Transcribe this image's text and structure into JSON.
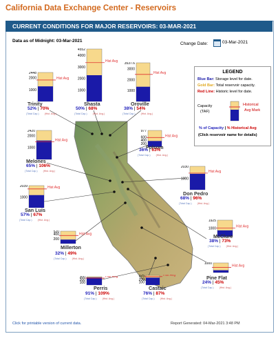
{
  "page_title": "California Data Exchange Center - Reservoirs",
  "header": "CURRENT CONDITIONS FOR MAJOR RESERVOIRS: 03-MAR-2021",
  "as_of": "Data as of Midnight: 03-Mar-2021",
  "change_date_label": "Change Date:",
  "change_date_value": "03-Mar-2021",
  "hist_label": "Hist Avg",
  "sub_cap": "(Total Cap.)",
  "sub_hist": "(Hist. Avg.)",
  "legend": {
    "title": "LEGEND",
    "blue_key": "Blue Bar:",
    "blue_text": "Storage level for date.",
    "gold_key": "Gold Bar:",
    "gold_text": "Total reservoir capacity.",
    "red_key": "Red Line:",
    "red_text": "Historic level for date.",
    "capacity": "Capacity",
    "taf": "(TAF)",
    "hist_avg": "Historical",
    "hist_mark": "Avg Mark",
    "pct_cap": "% of Capacity",
    "sep": "|",
    "pct_hist": "% Historical Avg",
    "click": "(Click reservoir name for details)"
  },
  "reservoirs": [
    {
      "name": "Trinity",
      "capacity": 2448,
      "ticks": [
        "2448",
        "2000",
        "1000"
      ],
      "pct_capacity": "52%",
      "pct_hist": "70%",
      "storage_fraction": 0.52,
      "hist_fraction": 0.74
    },
    {
      "name": "Shasta",
      "capacity": 4552,
      "ticks": [
        "4552",
        "4000",
        "3000",
        "2000",
        "1000"
      ],
      "pct_capacity": "50%",
      "pct_hist": "68%",
      "storage_fraction": 0.5,
      "hist_fraction": 0.74
    },
    {
      "name": "Oroville",
      "capacity": 3537.6,
      "ticks": [
        "3537.6",
        "3000",
        "2000",
        "1000"
      ],
      "pct_capacity": "38%",
      "pct_hist": "54%",
      "storage_fraction": 0.38,
      "hist_fraction": 0.7
    },
    {
      "name": "Folsom",
      "capacity": 977,
      "ticks": [
        "977",
        "600",
        "400",
        "200"
      ],
      "pct_capacity": "36%",
      "pct_hist": "63%",
      "storage_fraction": 0.36,
      "hist_fraction": 0.57
    },
    {
      "name": "Melones",
      "capacity": 2420,
      "ticks": [
        "2420",
        "2000",
        "1000"
      ],
      "pct_capacity": "65%",
      "pct_hist": "106%",
      "storage_fraction": 0.65,
      "hist_fraction": 0.61
    },
    {
      "name": "Don Pedro",
      "capacity": 2030,
      "ticks": [
        "2030",
        "1000"
      ],
      "pct_capacity": "68%",
      "pct_hist": "96%",
      "storage_fraction": 0.68,
      "hist_fraction": 0.71
    },
    {
      "name": "San Luis",
      "capacity": 2039,
      "ticks": [
        "2039",
        "1000"
      ],
      "pct_capacity": "57%",
      "pct_hist": "67%",
      "storage_fraction": 0.57,
      "hist_fraction": 0.85
    },
    {
      "name": "Millerton",
      "capacity": 520,
      "ticks": [
        "520",
        "400",
        "200"
      ],
      "pct_capacity": "32%",
      "pct_hist": "49%",
      "storage_fraction": 0.32,
      "hist_fraction": 0.65
    },
    {
      "name": "McClure",
      "capacity": 1925,
      "ticks": [
        "1925",
        "1000"
      ],
      "pct_capacity": "38%",
      "pct_hist": "73%",
      "storage_fraction": 0.38,
      "hist_fraction": 0.52
    },
    {
      "name": "Pine Flat",
      "capacity": 1000,
      "ticks": [
        "1000"
      ],
      "pct_capacity": "24%",
      "pct_hist": "45%",
      "storage_fraction": 0.24,
      "hist_fraction": 0.53
    },
    {
      "name": "Perris",
      "capacity": 300,
      "ticks": [
        "300",
        "200",
        "100"
      ],
      "pct_capacity": "91%",
      "pct_hist": "109%",
      "storage_fraction": 0.91,
      "hist_fraction": 0.83
    },
    {
      "name": "Castaic",
      "capacity": 325,
      "ticks": [
        "325",
        "200",
        "100"
      ],
      "pct_capacity": "76%",
      "pct_hist": "87%",
      "storage_fraction": 0.76,
      "hist_fraction": 0.87
    }
  ],
  "colors": {
    "storage": "#1a1aa8",
    "capacity": "#f7d98c",
    "hist": "#e03030",
    "header": "#1f5a8a",
    "title": "#d2691e"
  },
  "footer_left": "Click for printable version of current data.",
  "footer_right": "Report Generated:  04-Mar-2021 3:48 PM"
}
